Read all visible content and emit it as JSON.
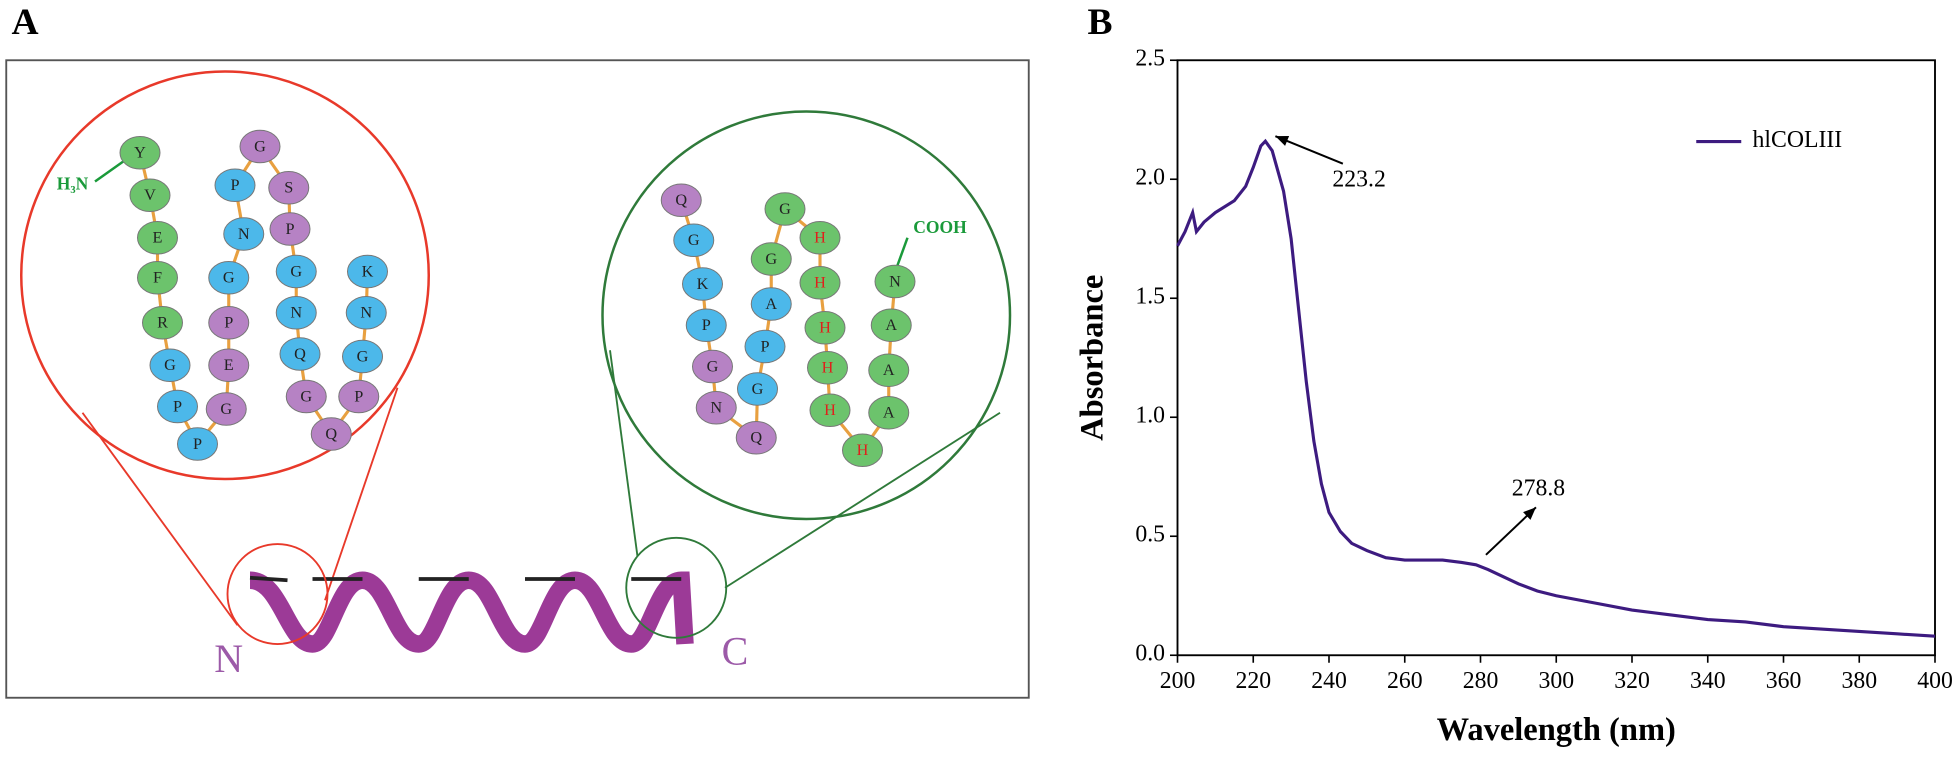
{
  "panel_labels": [
    "A",
    "B"
  ],
  "diagram": {
    "n_label": "N",
    "c_label": "C",
    "n_terminus": "H₃N",
    "c_terminus": "COOH",
    "left_beads": [
      {
        "letter": "Y",
        "color": "#6cc36c"
      },
      {
        "letter": "V",
        "color": "#6cc36c"
      },
      {
        "letter": "E",
        "color": "#6cc36c"
      },
      {
        "letter": "F",
        "color": "#6cc36c"
      },
      {
        "letter": "R",
        "color": "#6cc36c"
      },
      {
        "letter": "G",
        "color": "#4cb8ea"
      },
      {
        "letter": "P",
        "color": "#4cb8ea"
      },
      {
        "letter": "P",
        "color": "#4cb8ea"
      },
      {
        "letter": "G",
        "color": "#b682c4"
      },
      {
        "letter": "E",
        "color": "#b682c4"
      },
      {
        "letter": "P",
        "color": "#b682c4"
      },
      {
        "letter": "G",
        "color": "#4cb8ea"
      },
      {
        "letter": "N",
        "color": "#4cb8ea"
      },
      {
        "letter": "P",
        "color": "#4cb8ea"
      },
      {
        "letter": "G",
        "color": "#b682c4"
      },
      {
        "letter": "S",
        "color": "#b682c4"
      },
      {
        "letter": "P",
        "color": "#b682c4"
      },
      {
        "letter": "G",
        "color": "#4cb8ea"
      },
      {
        "letter": "N",
        "color": "#4cb8ea"
      },
      {
        "letter": "Q",
        "color": "#4cb8ea"
      },
      {
        "letter": "G",
        "color": "#b682c4"
      },
      {
        "letter": "Q",
        "color": "#b682c4"
      },
      {
        "letter": "P",
        "color": "#b682c4"
      },
      {
        "letter": "G",
        "color": "#4cb8ea"
      },
      {
        "letter": "N",
        "color": "#4cb8ea"
      },
      {
        "letter": "K",
        "color": "#4cb8ea"
      }
    ],
    "right_beads": [
      {
        "letter": "Q",
        "color": "#b682c4"
      },
      {
        "letter": "G",
        "color": "#4cb8ea"
      },
      {
        "letter": "K",
        "color": "#4cb8ea"
      },
      {
        "letter": "P",
        "color": "#4cb8ea"
      },
      {
        "letter": "G",
        "color": "#b682c4"
      },
      {
        "letter": "N",
        "color": "#b682c4"
      },
      {
        "letter": "Q",
        "color": "#b682c4"
      },
      {
        "letter": "G",
        "color": "#4cb8ea"
      },
      {
        "letter": "P",
        "color": "#4cb8ea"
      },
      {
        "letter": "A",
        "color": "#4cb8ea"
      },
      {
        "letter": "G",
        "color": "#6cc36c"
      },
      {
        "letter": "G",
        "color": "#6cc36c"
      },
      {
        "letter": "H",
        "color": "#6cc36c",
        "letter_color": "#e0201c"
      },
      {
        "letter": "H",
        "color": "#6cc36c",
        "letter_color": "#e0201c"
      },
      {
        "letter": "H",
        "color": "#6cc36c",
        "letter_color": "#e0201c"
      },
      {
        "letter": "H",
        "color": "#6cc36c",
        "letter_color": "#e0201c"
      },
      {
        "letter": "H",
        "color": "#6cc36c",
        "letter_color": "#e0201c"
      },
      {
        "letter": "H",
        "color": "#6cc36c",
        "letter_color": "#e0201c"
      },
      {
        "letter": "A",
        "color": "#6cc36c"
      },
      {
        "letter": "A",
        "color": "#6cc36c"
      },
      {
        "letter": "A",
        "color": "#6cc36c"
      },
      {
        "letter": "N",
        "color": "#6cc36c"
      }
    ]
  },
  "chart_data": {
    "type": "line",
    "x_label": "Wavelength (nm)",
    "y_label": "Absorbance",
    "x": [
      200,
      202,
      204,
      205,
      207,
      210,
      215,
      218,
      220,
      222,
      223.2,
      225,
      228,
      230,
      232,
      234,
      236,
      238,
      240,
      243,
      246,
      250,
      255,
      260,
      265,
      270,
      275,
      278.8,
      282,
      286,
      290,
      295,
      300,
      310,
      320,
      330,
      340,
      350,
      360,
      370,
      380,
      390,
      400
    ],
    "series": [
      {
        "name": "hlCOLIII",
        "color": "#3d1b80",
        "values": [
          1.72,
          1.78,
          1.86,
          1.78,
          1.82,
          1.86,
          1.91,
          1.97,
          2.05,
          2.14,
          2.16,
          2.12,
          1.95,
          1.75,
          1.45,
          1.15,
          0.9,
          0.72,
          0.6,
          0.52,
          0.47,
          0.44,
          0.41,
          0.4,
          0.4,
          0.4,
          0.39,
          0.38,
          0.36,
          0.33,
          0.3,
          0.27,
          0.25,
          0.22,
          0.19,
          0.17,
          0.15,
          0.14,
          0.12,
          0.11,
          0.1,
          0.09,
          0.08
        ]
      }
    ],
    "annotations": [
      {
        "x": 223.2,
        "y": 2.16,
        "text": "223.2"
      },
      {
        "x": 278.8,
        "y": 0.38,
        "text": "278.8"
      }
    ],
    "xlim": [
      200,
      400
    ],
    "xticks": [
      200,
      220,
      240,
      260,
      280,
      300,
      320,
      340,
      360,
      380,
      400
    ],
    "ylim": [
      0,
      2.5
    ],
    "yticks": [
      {
        "value": 0,
        "label": "0.0"
      },
      0.5,
      {
        "value": 1,
        "label": "1.0"
      },
      1.5,
      {
        "value": 2,
        "label": "2.0"
      },
      2.5
    ],
    "legend": "upper right"
  }
}
